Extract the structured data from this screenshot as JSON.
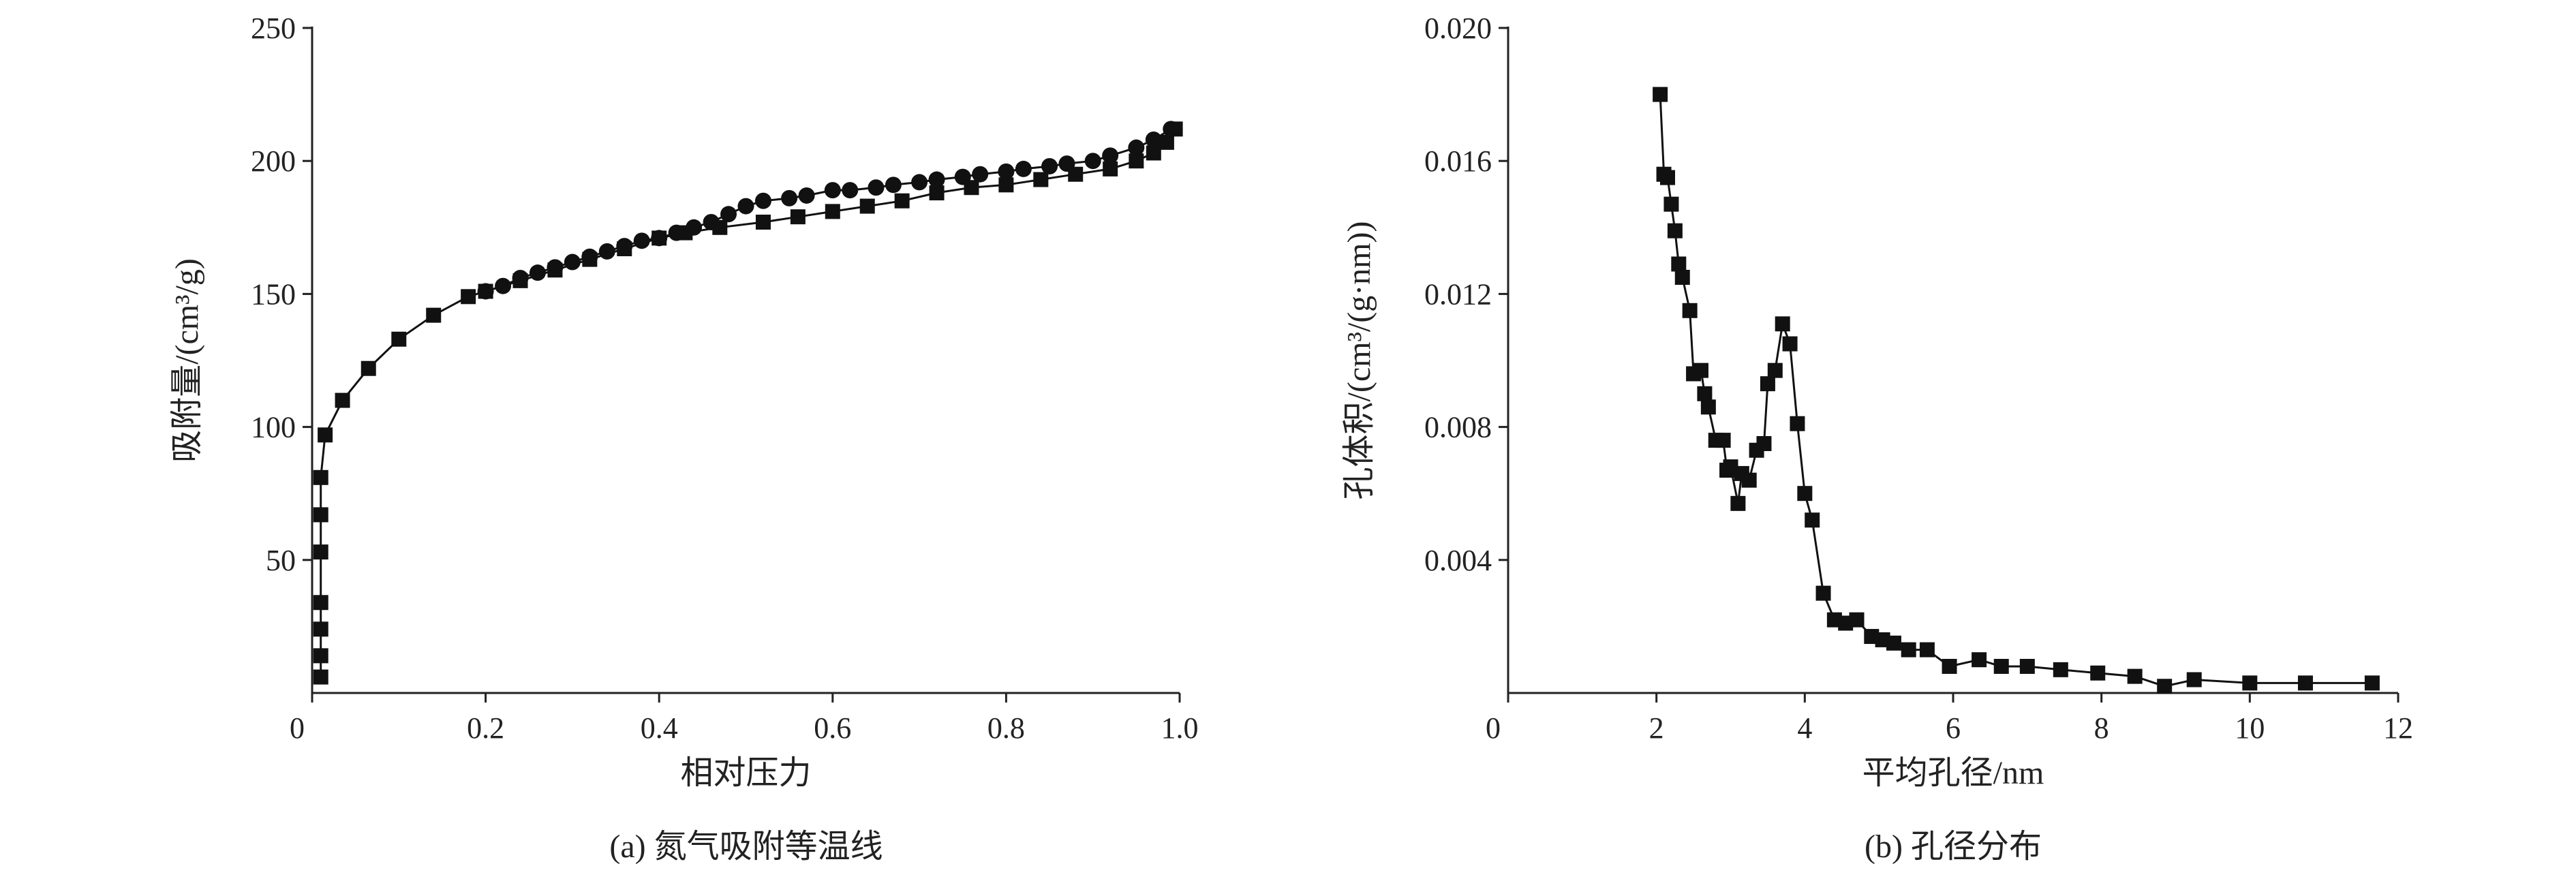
{
  "chart_data": [
    {
      "type": "line",
      "caption": "(a) 氮气吸附等温线",
      "xlabel": "相对压力",
      "ylabel": "吸附量/(cm³/g)",
      "xlim": [
        0,
        1
      ],
      "ylim": [
        0,
        250
      ],
      "xticks": [
        0,
        0.2,
        0.4,
        0.6,
        0.8,
        {
          "value": 1,
          "label": "1.0"
        }
      ],
      "yticks": [
        50,
        100,
        150,
        200,
        250
      ],
      "series": [
        {
          "marker": "square",
          "color": "#111111",
          "x": [
            0.01,
            0.01,
            0.01,
            0.01,
            0.01,
            0.01,
            0.01,
            0.015,
            0.035,
            0.065,
            0.1,
            0.14,
            0.18,
            0.2,
            0.24,
            0.28,
            0.32,
            0.36,
            0.4,
            0.43,
            0.47,
            0.52,
            0.56,
            0.6,
            0.64,
            0.68,
            0.72,
            0.76,
            0.8,
            0.84,
            0.88,
            0.92,
            0.95,
            0.97,
            0.985,
            0.995
          ],
          "values": [
            6,
            14,
            24,
            34,
            53,
            67,
            81,
            97,
            110,
            122,
            133,
            142,
            149,
            151,
            155,
            159,
            163,
            167,
            171,
            173,
            175,
            177,
            179,
            181,
            183,
            185,
            188,
            190,
            191,
            193,
            195,
            197,
            200,
            203,
            207,
            212
          ]
        },
        {
          "marker": "circle",
          "color": "#111111",
          "x": [
            0.99,
            0.97,
            0.95,
            0.92,
            0.9,
            0.87,
            0.85,
            0.82,
            0.8,
            0.77,
            0.75,
            0.72,
            0.7,
            0.67,
            0.65,
            0.62,
            0.6,
            0.57,
            0.55,
            0.52,
            0.5,
            0.48,
            0.46,
            0.44,
            0.42,
            0.4,
            0.38,
            0.36,
            0.34,
            0.32,
            0.3,
            0.28,
            0.26,
            0.24,
            0.22,
            0.2
          ],
          "values": [
            212,
            208,
            205,
            202,
            200,
            199,
            198,
            197,
            196,
            195,
            194,
            193,
            192,
            191,
            190,
            189,
            189,
            187,
            186,
            185,
            183,
            180,
            177,
            175,
            173,
            171,
            170,
            168,
            166,
            164,
            162,
            160,
            158,
            156,
            153,
            151
          ]
        }
      ]
    },
    {
      "type": "line",
      "caption": "(b) 孔径分布",
      "xlabel": "平均孔径/nm",
      "ylabel": "孔体积/(cm³/(g·nm))",
      "xlim": [
        0,
        12
      ],
      "ylim": [
        0,
        0.02
      ],
      "xticks": [
        0,
        2,
        4,
        6,
        8,
        10,
        12
      ],
      "yticks": [
        0.004,
        0.008,
        0.012,
        0.016,
        {
          "value": 0.02,
          "label": "0.020"
        }
      ],
      "series": [
        {
          "marker": "square",
          "color": "#111111",
          "x": [
            2.05,
            2.1,
            2.15,
            2.2,
            2.25,
            2.3,
            2.35,
            2.45,
            2.5,
            2.6,
            2.65,
            2.7,
            2.8,
            2.9,
            2.95,
            3.0,
            3.1,
            3.15,
            3.25,
            3.35,
            3.45,
            3.5,
            3.6,
            3.7,
            3.8,
            3.9,
            4.0,
            4.1,
            4.25,
            4.4,
            4.55,
            4.7,
            4.9,
            5.05,
            5.2,
            5.4,
            5.65,
            5.95,
            6.35,
            6.65,
            7.0,
            7.45,
            7.95,
            8.45,
            8.85,
            9.25,
            10.0,
            10.75,
            11.65
          ],
          "values": [
            0.018,
            0.0156,
            0.0155,
            0.0147,
            0.0139,
            0.0129,
            0.0125,
            0.0115,
            0.0096,
            0.0097,
            0.009,
            0.0086,
            0.0076,
            0.0076,
            0.0067,
            0.0068,
            0.0057,
            0.0066,
            0.0064,
            0.0073,
            0.0075,
            0.0093,
            0.0097,
            0.0111,
            0.0105,
            0.0081,
            0.006,
            0.0052,
            0.003,
            0.0022,
            0.0021,
            0.0022,
            0.0017,
            0.0016,
            0.0015,
            0.0013,
            0.0013,
            0.0008,
            0.001,
            0.0008,
            0.0008,
            0.0007,
            0.0006,
            0.0005,
            0.0002,
            0.0004,
            0.0003,
            0.0003,
            0.0003
          ]
        }
      ]
    }
  ]
}
